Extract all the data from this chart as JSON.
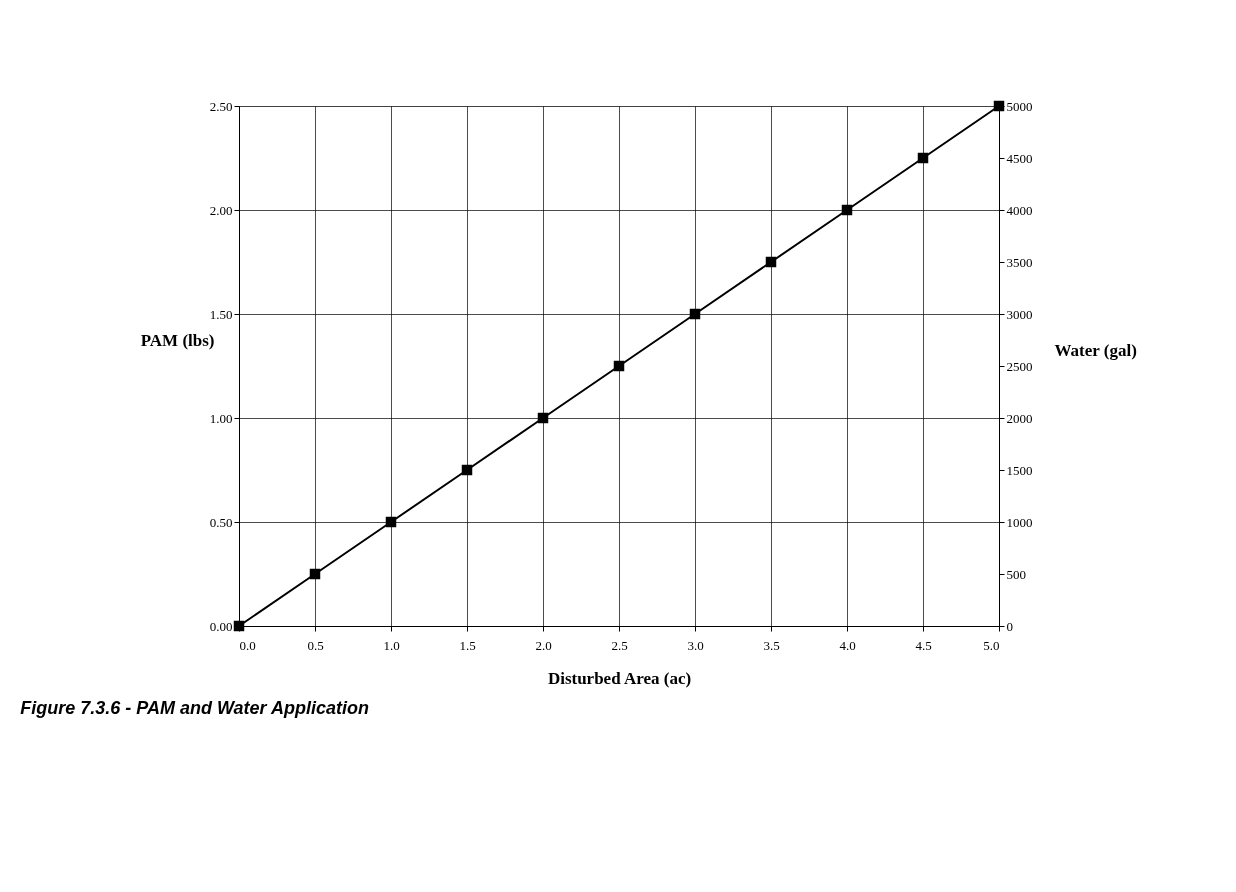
{
  "chart_data": {
    "type": "line",
    "xlabel": "Disturbed Area (ac)",
    "ylabel": "PAM (lbs)",
    "y2label": "Water (gal)",
    "x": [
      0,
      0.5,
      1,
      1.5,
      2,
      2.5,
      3,
      3.5,
      4,
      4.5,
      5
    ],
    "series": [
      {
        "color": "#000000",
        "values": [
          0,
          0.25,
          0.5,
          0.75,
          1,
          1.25,
          1.5,
          1.75,
          2,
          2.25,
          2.5
        ]
      }
    ],
    "xlim": [
      0,
      5
    ],
    "xticks": [
      {
        "value": 0,
        "label": "0.0"
      },
      {
        "value": 0.5,
        "label": "0.5"
      },
      {
        "value": 1,
        "label": "1.0"
      },
      {
        "value": 1.5,
        "label": "1.5"
      },
      {
        "value": 2,
        "label": "2.0"
      },
      {
        "value": 2.5,
        "label": "2.5"
      },
      {
        "value": 3,
        "label": "3.0"
      },
      {
        "value": 3.5,
        "label": "3.5"
      },
      {
        "value": 4,
        "label": "4.0"
      },
      {
        "value": 4.5,
        "label": "4.5"
      },
      {
        "value": 5,
        "label": "5.0"
      }
    ],
    "ylim": [
      0,
      2.5
    ],
    "yticks": [
      {
        "value": 0,
        "label": "0.00"
      },
      {
        "value": 0.5,
        "label": "0.50"
      },
      {
        "value": 1,
        "label": "1.00"
      },
      {
        "value": 1.5,
        "label": "1.50"
      },
      {
        "value": 2,
        "label": "2.00"
      },
      {
        "value": 2.5,
        "label": "2.50"
      }
    ],
    "y2lim": [
      0,
      5000
    ],
    "y2ticks": [
      0,
      500,
      1000,
      1500,
      2000,
      2500,
      3000,
      3500,
      4000,
      4500,
      5000
    ],
    "grid": true,
    "marker": "square",
    "line_style": "solid",
    "annotations": [
      "Figure 7.3.6 - PAM and Water Application"
    ]
  }
}
